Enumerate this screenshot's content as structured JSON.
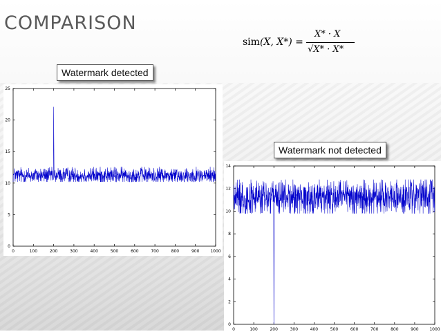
{
  "title": "COMPARISON",
  "formula": {
    "lhs_func": "sim",
    "lhs_args": "(X, X*) =",
    "numerator": "X* · X",
    "denominator": "√X* · X*"
  },
  "callouts": {
    "left": "Watermark detected",
    "right": "Watermark not detected"
  },
  "colors": {
    "series": "#0000cc",
    "title": "#5a5a5a"
  },
  "chart_data": [
    {
      "type": "line",
      "title": "",
      "xlabel": "",
      "ylabel": "",
      "xlim": [
        0,
        1000
      ],
      "ylim": [
        0,
        25
      ],
      "xticks": [
        0,
        100,
        200,
        300,
        400,
        500,
        600,
        700,
        800,
        900,
        1000
      ],
      "yticks": [
        0,
        5,
        10,
        15,
        20,
        25
      ],
      "grid": false,
      "series": [
        {
          "baseline_mean": 11.2,
          "baseline_noise_range": [
            10.2,
            12.6
          ],
          "n_points": 1000,
          "spike": {
            "x": 200,
            "y": 22.1
          },
          "spike_secondary": {
            "x": 201,
            "y": 16.7
          }
        }
      ]
    },
    {
      "type": "line",
      "title": "",
      "xlabel": "",
      "ylabel": "",
      "xlim": [
        0,
        1000
      ],
      "ylim": [
        0,
        14
      ],
      "xticks": [
        0,
        100,
        200,
        300,
        400,
        500,
        600,
        700,
        800,
        900,
        1000
      ],
      "yticks": [
        0,
        2,
        4,
        6,
        8,
        10,
        12,
        14
      ],
      "grid": false,
      "series": [
        {
          "baseline_mean": 11.2,
          "baseline_noise_range": [
            9.8,
            12.8
          ],
          "n_points": 1000,
          "dip": {
            "x": 200,
            "y": 0
          },
          "dip_secondary": {
            "x": 201,
            "y": 5.6
          }
        }
      ]
    }
  ]
}
